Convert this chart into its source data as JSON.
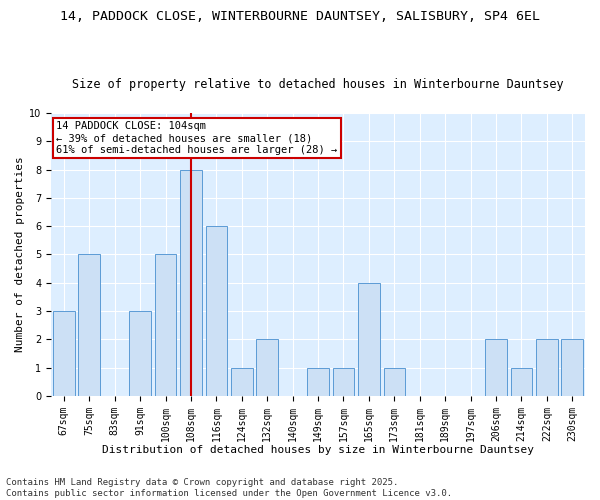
{
  "title_line1": "14, PADDOCK CLOSE, WINTERBOURNE DAUNTSEY, SALISBURY, SP4 6EL",
  "title_line2": "Size of property relative to detached houses in Winterbourne Dauntsey",
  "xlabel": "Distribution of detached houses by size in Winterbourne Dauntsey",
  "ylabel": "Number of detached properties",
  "categories": [
    "67sqm",
    "75sqm",
    "83sqm",
    "91sqm",
    "100sqm",
    "108sqm",
    "116sqm",
    "124sqm",
    "132sqm",
    "140sqm",
    "149sqm",
    "157sqm",
    "165sqm",
    "173sqm",
    "181sqm",
    "189sqm",
    "197sqm",
    "206sqm",
    "214sqm",
    "222sqm",
    "230sqm"
  ],
  "values": [
    3,
    5,
    0,
    3,
    5,
    8,
    6,
    1,
    2,
    0,
    1,
    1,
    4,
    1,
    0,
    0,
    0,
    2,
    1,
    2,
    2
  ],
  "bar_color": "#cce0f5",
  "bar_edge_color": "#5b9bd5",
  "vline_x_idx": 5,
  "vline_color": "#cc0000",
  "annotation_title": "14 PADDOCK CLOSE: 104sqm",
  "annotation_line2": "← 39% of detached houses are smaller (18)",
  "annotation_line3": "61% of semi-detached houses are larger (28) →",
  "annotation_box_edgecolor": "#cc0000",
  "ylim": [
    0,
    10
  ],
  "yticks": [
    0,
    1,
    2,
    3,
    4,
    5,
    6,
    7,
    8,
    9,
    10
  ],
  "plot_bg_color": "#ddeeff",
  "footer_line1": "Contains HM Land Registry data © Crown copyright and database right 2025.",
  "footer_line2": "Contains public sector information licensed under the Open Government Licence v3.0.",
  "title_fontsize": 9.5,
  "subtitle_fontsize": 8.5,
  "axis_label_fontsize": 8,
  "tick_fontsize": 7,
  "annot_fontsize": 7.5,
  "footer_fontsize": 6.5
}
